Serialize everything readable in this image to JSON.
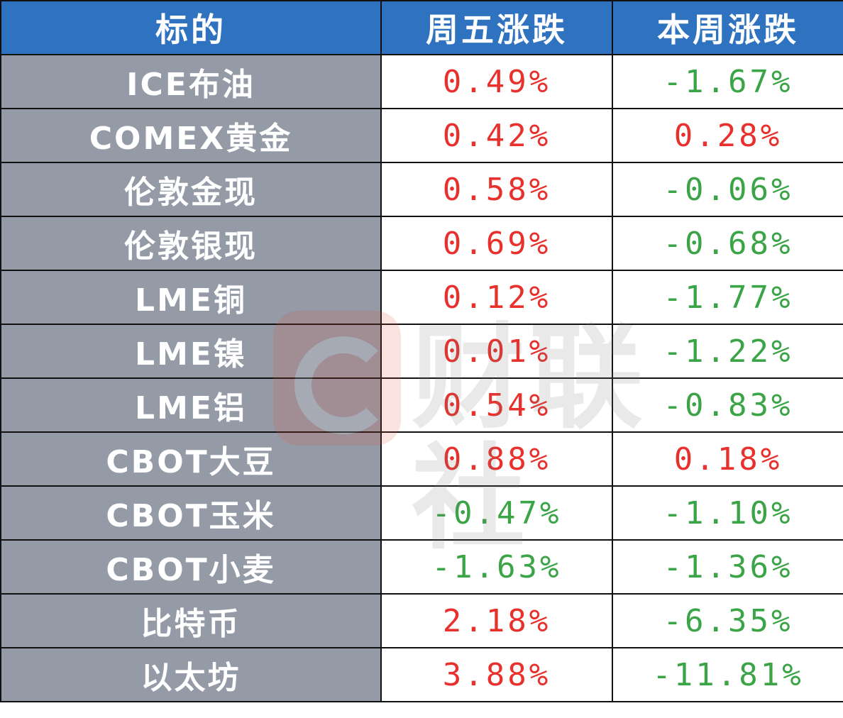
{
  "table": {
    "headers": [
      "标的",
      "周五涨跌",
      "本周涨跌"
    ],
    "rows": [
      {
        "name": "ICE布油",
        "fri": "0.49%",
        "week": "-1.67%"
      },
      {
        "name": "COMEX黄金",
        "fri": "0.42%",
        "week": "0.28%"
      },
      {
        "name": "伦敦金现",
        "fri": "0.58%",
        "week": "-0.06%"
      },
      {
        "name": "伦敦银现",
        "fri": "0.69%",
        "week": "-0.68%"
      },
      {
        "name": "LME铜",
        "fri": "0.12%",
        "week": "-1.77%"
      },
      {
        "name": "LME镍",
        "fri": "0.01%",
        "week": "-1.22%"
      },
      {
        "name": "LME铝",
        "fri": "0.54%",
        "week": "-0.83%"
      },
      {
        "name": "CBOT大豆",
        "fri": "0.88%",
        "week": "0.18%"
      },
      {
        "name": "CBOT玉米",
        "fri": "-0.47%",
        "week": "-1.10%"
      },
      {
        "name": "CBOT小麦",
        "fri": "-1.63%",
        "week": "-1.36%"
      },
      {
        "name": "比特币",
        "fri": "2.18%",
        "week": "-6.35%"
      },
      {
        "name": "以太坊",
        "fri": "3.88%",
        "week": "-11.81%"
      }
    ]
  },
  "colors": {
    "header_bg": "#2f73c0",
    "name_bg": "#949aa6",
    "up": "#e8312c",
    "down": "#3aa446"
  },
  "watermark": {
    "text": "财联社",
    "icon": "cls-logo-icon"
  }
}
